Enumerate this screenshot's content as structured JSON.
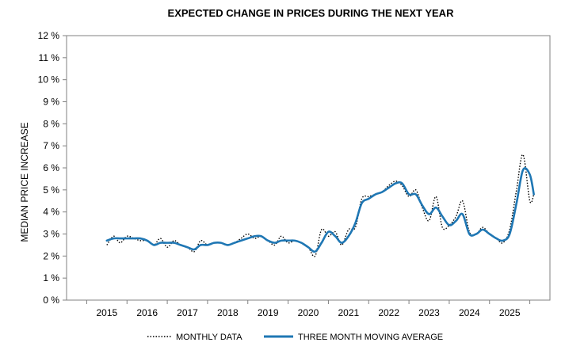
{
  "chart_data": {
    "type": "line",
    "title": "EXPECTED CHANGE IN PRICES DURING THE NEXT YEAR",
    "xlabel": "",
    "ylabel": "MEDIAN PRICE INCREASE",
    "xlim": [
      2014.0,
      2026.0
    ],
    "ylim": [
      0,
      12
    ],
    "x_ticks": [
      2015,
      2016,
      2017,
      2018,
      2019,
      2020,
      2021,
      2022,
      2023,
      2024,
      2025
    ],
    "y_ticks": [
      0,
      1,
      2,
      3,
      4,
      5,
      6,
      7,
      8,
      9,
      10,
      11,
      12
    ],
    "y_tick_labels": [
      "0 %",
      "1 %",
      "2 %",
      "3 %",
      "4 %",
      "5 %",
      "6 %",
      "7 %",
      "8 %",
      "9 %",
      "10 %",
      "11 %",
      "12 %"
    ],
    "grid": false,
    "legend_position": "bottom",
    "series": [
      {
        "name": "MONTHLY DATA",
        "color": "#000000",
        "style": "dotted",
        "points": [
          [
            2015.0,
            2.5
          ],
          [
            2015.17,
            2.9
          ],
          [
            2015.33,
            2.6
          ],
          [
            2015.5,
            2.9
          ],
          [
            2015.67,
            2.8
          ],
          [
            2015.83,
            2.7
          ],
          [
            2016.0,
            2.7
          ],
          [
            2016.17,
            2.5
          ],
          [
            2016.33,
            2.8
          ],
          [
            2016.5,
            2.4
          ],
          [
            2016.67,
            2.7
          ],
          [
            2016.83,
            2.5
          ],
          [
            2017.0,
            2.4
          ],
          [
            2017.17,
            2.2
          ],
          [
            2017.33,
            2.7
          ],
          [
            2017.5,
            2.5
          ],
          [
            2017.67,
            2.6
          ],
          [
            2017.83,
            2.6
          ],
          [
            2018.0,
            2.5
          ],
          [
            2018.17,
            2.6
          ],
          [
            2018.33,
            2.8
          ],
          [
            2018.5,
            3.0
          ],
          [
            2018.67,
            2.8
          ],
          [
            2018.83,
            2.9
          ],
          [
            2019.0,
            2.7
          ],
          [
            2019.17,
            2.5
          ],
          [
            2019.33,
            2.9
          ],
          [
            2019.5,
            2.6
          ],
          [
            2019.67,
            2.7
          ],
          [
            2019.83,
            2.6
          ],
          [
            2020.0,
            2.4
          ],
          [
            2020.17,
            2.0
          ],
          [
            2020.33,
            3.2
          ],
          [
            2020.5,
            2.9
          ],
          [
            2020.67,
            3.1
          ],
          [
            2020.83,
            2.5
          ],
          [
            2021.0,
            3.2
          ],
          [
            2021.17,
            3.3
          ],
          [
            2021.33,
            4.6
          ],
          [
            2021.5,
            4.7
          ],
          [
            2021.67,
            4.8
          ],
          [
            2021.83,
            4.9
          ],
          [
            2022.0,
            5.2
          ],
          [
            2022.17,
            5.4
          ],
          [
            2022.33,
            5.2
          ],
          [
            2022.5,
            4.7
          ],
          [
            2022.67,
            5.0
          ],
          [
            2022.83,
            4.2
          ],
          [
            2023.0,
            3.6
          ],
          [
            2023.17,
            4.7
          ],
          [
            2023.33,
            3.3
          ],
          [
            2023.5,
            3.4
          ],
          [
            2023.67,
            3.8
          ],
          [
            2023.83,
            4.5
          ],
          [
            2024.0,
            3.1
          ],
          [
            2024.17,
            3.0
          ],
          [
            2024.33,
            3.3
          ],
          [
            2024.5,
            3.0
          ],
          [
            2024.67,
            2.8
          ],
          [
            2024.83,
            2.6
          ],
          [
            2025.0,
            3.2
          ],
          [
            2025.17,
            5.0
          ],
          [
            2025.33,
            6.6
          ],
          [
            2025.5,
            4.5
          ],
          [
            2025.6,
            4.8
          ]
        ]
      },
      {
        "name": "THREE MONTH MOVING AVERAGE",
        "color": "#1f77b4",
        "style": "solid",
        "points": [
          [
            2015.0,
            2.7
          ],
          [
            2015.17,
            2.8
          ],
          [
            2015.33,
            2.8
          ],
          [
            2015.5,
            2.8
          ],
          [
            2015.67,
            2.8
          ],
          [
            2015.83,
            2.8
          ],
          [
            2016.0,
            2.7
          ],
          [
            2016.17,
            2.5
          ],
          [
            2016.33,
            2.6
          ],
          [
            2016.5,
            2.6
          ],
          [
            2016.67,
            2.6
          ],
          [
            2016.83,
            2.5
          ],
          [
            2017.0,
            2.4
          ],
          [
            2017.17,
            2.3
          ],
          [
            2017.33,
            2.5
          ],
          [
            2017.5,
            2.5
          ],
          [
            2017.67,
            2.6
          ],
          [
            2017.83,
            2.6
          ],
          [
            2018.0,
            2.5
          ],
          [
            2018.17,
            2.6
          ],
          [
            2018.33,
            2.7
          ],
          [
            2018.5,
            2.8
          ],
          [
            2018.67,
            2.9
          ],
          [
            2018.83,
            2.9
          ],
          [
            2019.0,
            2.7
          ],
          [
            2019.17,
            2.6
          ],
          [
            2019.33,
            2.7
          ],
          [
            2019.5,
            2.7
          ],
          [
            2019.67,
            2.7
          ],
          [
            2019.83,
            2.6
          ],
          [
            2020.0,
            2.4
          ],
          [
            2020.17,
            2.2
          ],
          [
            2020.33,
            2.6
          ],
          [
            2020.5,
            3.1
          ],
          [
            2020.67,
            2.9
          ],
          [
            2020.83,
            2.6
          ],
          [
            2021.0,
            2.9
          ],
          [
            2021.17,
            3.5
          ],
          [
            2021.33,
            4.4
          ],
          [
            2021.5,
            4.6
          ],
          [
            2021.67,
            4.8
          ],
          [
            2021.83,
            4.9
          ],
          [
            2022.0,
            5.1
          ],
          [
            2022.17,
            5.3
          ],
          [
            2022.33,
            5.3
          ],
          [
            2022.5,
            4.8
          ],
          [
            2022.67,
            4.8
          ],
          [
            2022.83,
            4.3
          ],
          [
            2023.0,
            3.9
          ],
          [
            2023.17,
            4.2
          ],
          [
            2023.33,
            3.8
          ],
          [
            2023.5,
            3.4
          ],
          [
            2023.67,
            3.6
          ],
          [
            2023.83,
            3.9
          ],
          [
            2024.0,
            3.0
          ],
          [
            2024.17,
            3.0
          ],
          [
            2024.33,
            3.2
          ],
          [
            2024.5,
            3.0
          ],
          [
            2024.67,
            2.8
          ],
          [
            2024.83,
            2.7
          ],
          [
            2025.0,
            3.0
          ],
          [
            2025.17,
            4.4
          ],
          [
            2025.33,
            5.9
          ],
          [
            2025.5,
            5.7
          ],
          [
            2025.6,
            4.8
          ]
        ]
      }
    ]
  }
}
